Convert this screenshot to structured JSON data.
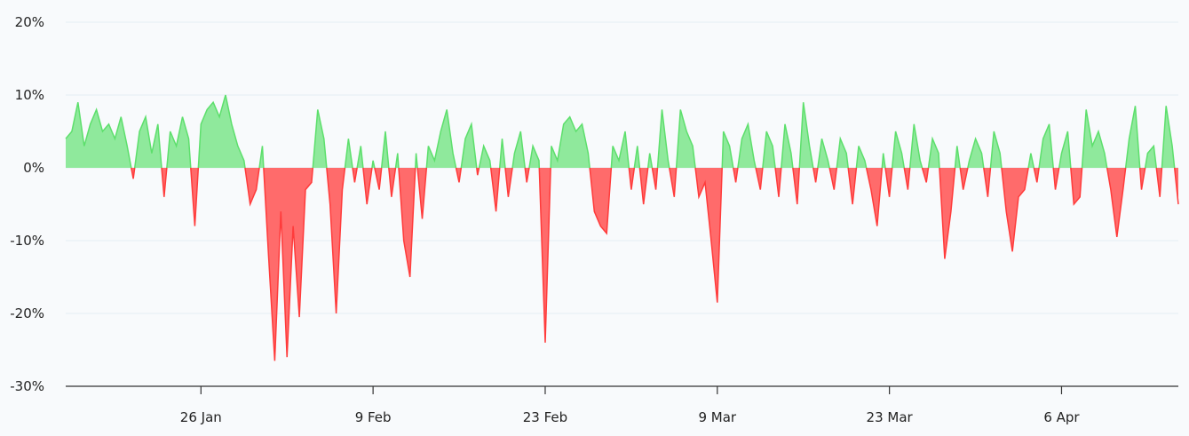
{
  "chart_data": {
    "type": "area",
    "title": "",
    "xlabel": "",
    "ylabel": "",
    "ylim": [
      -30,
      20
    ],
    "y_ticks": [
      "20%",
      "10%",
      "0%",
      "-10%",
      "-20%",
      "-30%"
    ],
    "y_tick_values": [
      20,
      10,
      0,
      -10,
      -20,
      -30
    ],
    "x_ticks": [
      "26 Jan",
      "9 Feb",
      "23 Feb",
      "9 Mar",
      "23 Mar",
      "6 Apr"
    ],
    "x_tick_dates": [
      "01-26 00",
      "02-09 00",
      "02-23 00",
      "03-09 00",
      "03-23 00",
      "04-06 00"
    ],
    "grid": true,
    "colors": {
      "positive_fill": "#8fe99c",
      "positive_line": "#5ddf6c",
      "negative_fill": "#ff6b6b",
      "negative_line": "#ff3b3b",
      "grid": "#e5edf5",
      "axis": "#333333"
    },
    "x": [
      "01-15 00",
      "01-15 12",
      "01-16 00",
      "01-16 12",
      "01-17 00",
      "01-17 12",
      "01-18 00",
      "01-18 12",
      "01-19 00",
      "01-19 12",
      "01-20 00",
      "01-20 12",
      "01-21 00",
      "01-21 12",
      "01-22 00",
      "01-22 12",
      "01-23 00",
      "01-23 12",
      "01-24 00",
      "01-24 12",
      "01-25 00",
      "01-25 12",
      "01-26 00",
      "01-26 12",
      "01-27 00",
      "01-27 12",
      "01-28 00",
      "01-28 12",
      "01-29 00",
      "01-29 12",
      "01-30 00",
      "01-30 12",
      "01-31 00",
      "01-31 12",
      "02-01 00",
      "02-01 12",
      "02-02 00",
      "02-02 12",
      "02-03 00",
      "02-03 12",
      "02-04 00",
      "02-04 12",
      "02-05 00",
      "02-05 12",
      "02-06 00",
      "02-06 12",
      "02-07 00",
      "02-07 12",
      "02-08 00",
      "02-08 12",
      "02-09 00",
      "02-09 12",
      "02-10 00",
      "02-10 12",
      "02-11 00",
      "02-11 12",
      "02-12 00",
      "02-12 12",
      "02-13 00",
      "02-13 12",
      "02-14 00",
      "02-14 12",
      "02-15 00",
      "02-15 12",
      "02-16 00",
      "02-16 12",
      "02-17 00",
      "02-17 12",
      "02-18 00",
      "02-18 12",
      "02-19 00",
      "02-19 12",
      "02-20 00",
      "02-20 12",
      "02-21 00",
      "02-21 12",
      "02-22 00",
      "02-22 12",
      "02-23 00",
      "02-23 12",
      "02-24 00",
      "02-24 12",
      "02-25 00",
      "02-25 12",
      "02-26 00",
      "02-26 12",
      "02-27 00",
      "02-27 12",
      "02-28 00",
      "02-28 12",
      "03-01 00",
      "03-01 12",
      "03-02 00",
      "03-02 12",
      "03-03 00",
      "03-03 12",
      "03-04 00",
      "03-04 12",
      "03-05 00",
      "03-05 12",
      "03-06 00",
      "03-06 12",
      "03-07 00",
      "03-07 12",
      "03-08 00",
      "03-08 12",
      "03-09 00",
      "03-09 12",
      "03-10 00",
      "03-10 12",
      "03-11 00",
      "03-11 12",
      "03-12 00",
      "03-12 12",
      "03-13 00",
      "03-13 12",
      "03-14 00",
      "03-14 12",
      "03-15 00",
      "03-15 12",
      "03-16 00",
      "03-16 12",
      "03-17 00",
      "03-17 12",
      "03-18 00",
      "03-18 12",
      "03-19 00",
      "03-19 12",
      "03-20 00",
      "03-20 12",
      "03-21 00",
      "03-21 12",
      "03-22 00",
      "03-22 12",
      "03-23 00",
      "03-23 12",
      "03-24 00",
      "03-24 12",
      "03-25 00",
      "03-25 12",
      "03-26 00",
      "03-26 12",
      "03-27 00",
      "03-27 12",
      "03-28 00",
      "03-28 12",
      "03-29 00",
      "03-29 12",
      "03-30 00",
      "03-30 12",
      "03-31 00",
      "03-31 12",
      "04-01 00",
      "04-01 12",
      "04-02 00",
      "04-02 12",
      "04-03 00",
      "04-03 12",
      "04-04 00",
      "04-04 12",
      "04-05 00",
      "04-05 12",
      "04-06 00",
      "04-06 12",
      "04-07 00",
      "04-07 12",
      "04-08 00",
      "04-08 12",
      "04-09 00",
      "04-09 12",
      "04-10 00",
      "04-10 12",
      "04-11 00",
      "04-11 12",
      "04-12 00",
      "04-12 12",
      "04-13 00",
      "04-13 12",
      "04-14 00",
      "04-14 12",
      "04-15 00",
      "04-15 12"
    ],
    "values": [
      4,
      5,
      9,
      3,
      6,
      8,
      5,
      6,
      4,
      7,
      3,
      -1.5,
      5,
      7,
      2,
      6,
      -4,
      5,
      3,
      7,
      4,
      -8,
      6,
      8,
      9,
      7,
      10,
      6,
      3,
      1,
      -5,
      -3,
      3,
      -12,
      -26.5,
      -6,
      -26,
      -8,
      -20.5,
      -3,
      -2,
      8,
      4,
      -5,
      -20,
      -3,
      4,
      -2,
      3,
      -5,
      1,
      -3,
      5,
      -4,
      2,
      -10,
      -15,
      2,
      -7,
      3,
      1,
      5,
      8,
      2,
      -2,
      4,
      6,
      -1,
      3,
      1,
      -6,
      4,
      -4,
      2,
      5,
      -2,
      3,
      1,
      -24,
      3,
      1,
      6,
      7,
      5,
      6,
      2,
      -6,
      -8,
      -9,
      3,
      1,
      5,
      -3,
      3,
      -5,
      2,
      -3,
      8,
      1,
      -4,
      8,
      5,
      3,
      -4,
      -2,
      -10,
      -18.5,
      5,
      3,
      -2,
      4,
      6,
      1,
      -3,
      5,
      3,
      -4,
      6,
      2,
      -5,
      9,
      3,
      -2,
      4,
      1,
      -3,
      4,
      2,
      -5,
      3,
      1,
      -3,
      -8,
      2,
      -4,
      5,
      2,
      -3,
      6,
      1,
      -2,
      4,
      2,
      -12.5,
      -6,
      3,
      -3,
      1,
      4,
      2,
      -4,
      5,
      2,
      -6,
      -11.5,
      -4,
      -3,
      2,
      -2,
      4,
      6,
      -3,
      2,
      5,
      -5,
      -4,
      8,
      3,
      5,
      2,
      -3,
      -9.5,
      -3,
      4,
      8.5,
      -3,
      2,
      3,
      -4,
      8.5,
      3,
      -5
    ]
  }
}
